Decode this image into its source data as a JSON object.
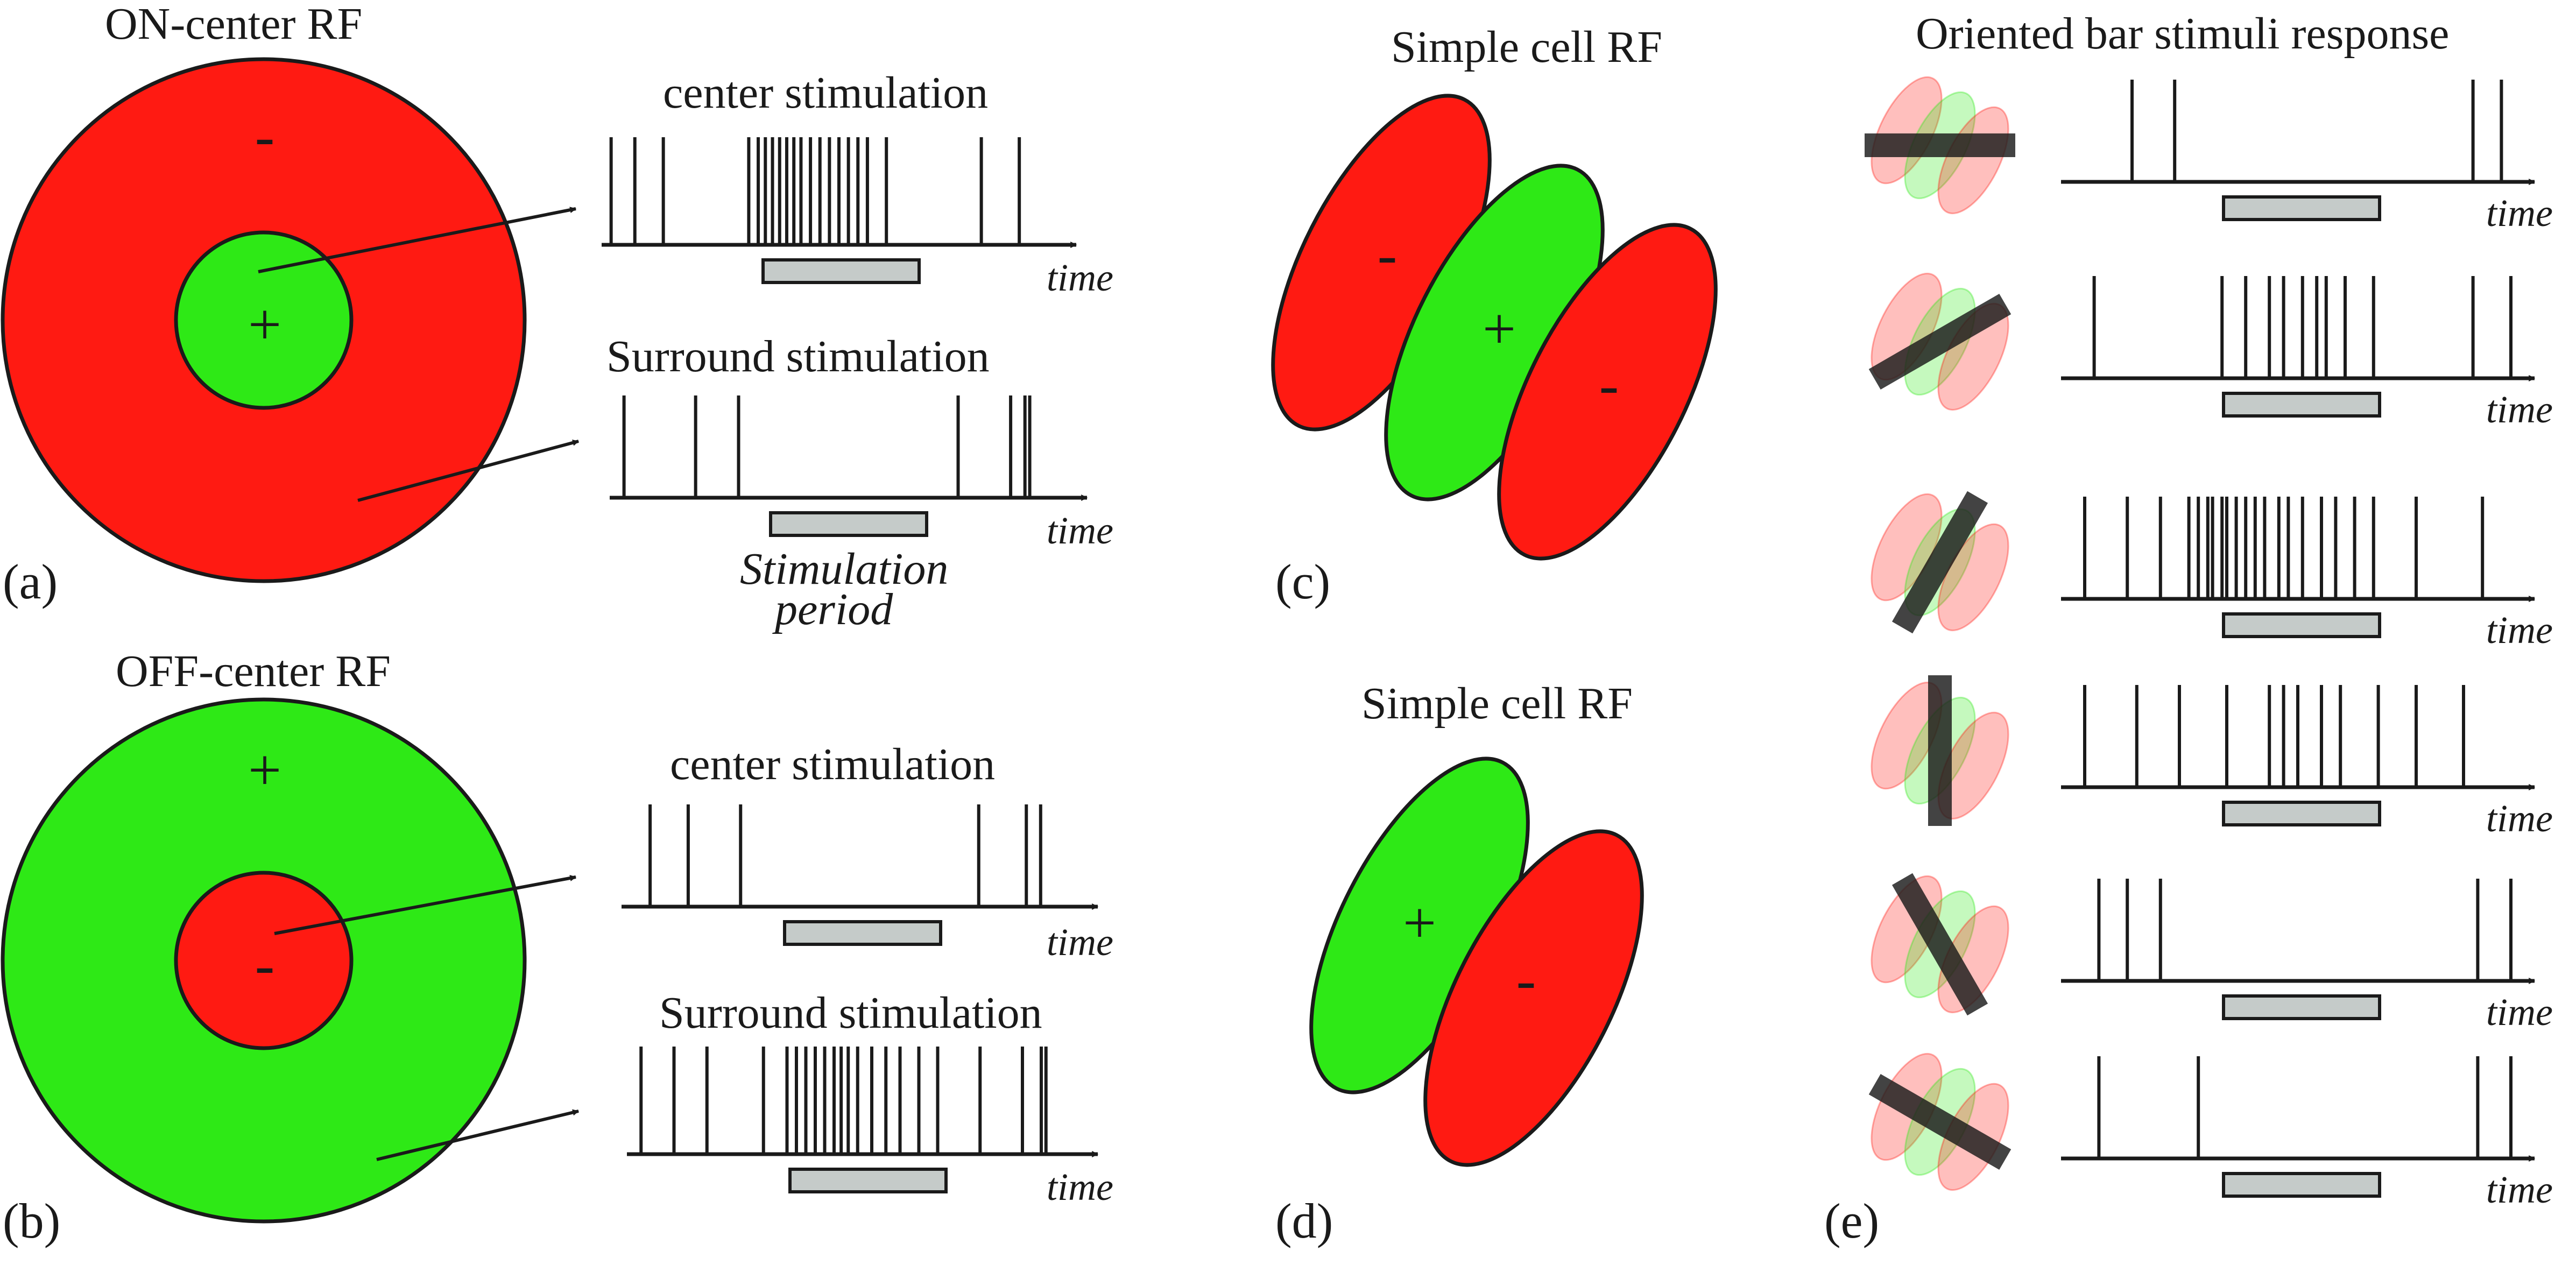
{
  "colors": {
    "excitatory": "#2ee916",
    "inhibitory": "#ff1a12",
    "stroke": "#1a1a1a",
    "stim_bar": "#c5cbc9",
    "oriented_bar": "#1a1a1a"
  },
  "panels": {
    "a": {
      "label": "(a)",
      "title": "ON-center RF",
      "center_sign": "+",
      "surround_sign": "-",
      "trace_center": {
        "title": "center stimulation",
        "time_label": "time"
      },
      "trace_surround": {
        "title": "Surround stimulation",
        "time_label": "time"
      },
      "stim_period_line1": "Stimulation",
      "stim_period_line2": "period"
    },
    "b": {
      "label": "(b)",
      "title": "OFF-center RF",
      "center_sign": "-",
      "surround_sign": "+",
      "trace_center": {
        "title": "center stimulation",
        "time_label": "time"
      },
      "trace_surround": {
        "title": "Surround stimulation",
        "time_label": "time"
      }
    },
    "c": {
      "label": "(c)",
      "title": "Simple cell RF",
      "signs": [
        "-",
        "+",
        "-"
      ]
    },
    "d": {
      "label": "(d)",
      "title": "Simple cell RF",
      "signs": [
        "+",
        "-"
      ]
    },
    "e": {
      "label": "(e)",
      "title": "Oriented bar stimuli response",
      "time_label": "time",
      "orientation_icon": "oriented-bar-icon"
    }
  }
}
